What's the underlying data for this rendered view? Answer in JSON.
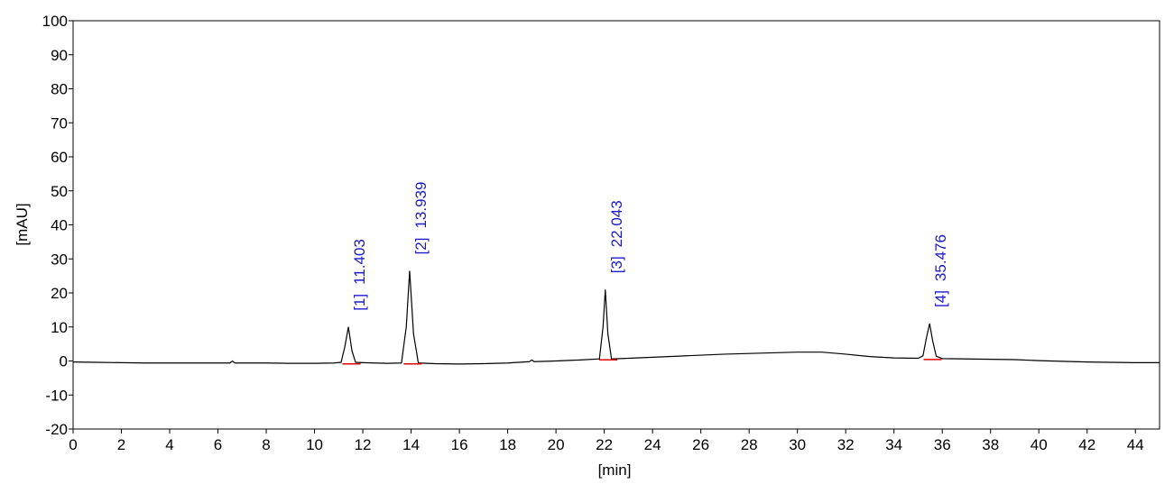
{
  "chart_data": {
    "type": "line",
    "x_label": "[min]",
    "y_label": "[mAU]",
    "xlim": [
      0,
      45
    ],
    "ylim": [
      -20,
      100
    ],
    "xticks": [
      0,
      2,
      4,
      6,
      8,
      10,
      12,
      14,
      16,
      18,
      20,
      22,
      24,
      26,
      28,
      30,
      32,
      34,
      36,
      38,
      40,
      42,
      44
    ],
    "yticks": [
      -20,
      -10,
      0,
      10,
      20,
      30,
      40,
      50,
      60,
      70,
      80,
      90,
      100
    ],
    "series": [
      {
        "color": "#000000",
        "x": [
          0,
          1,
          2,
          3,
          4,
          5,
          6,
          6.5,
          6.6,
          6.7,
          7,
          8,
          9,
          10,
          10.8,
          11.1,
          11.25,
          11.403,
          11.55,
          11.7,
          12,
          13,
          13.6,
          13.8,
          13.939,
          14.1,
          14.3,
          15,
          16,
          17,
          18,
          18.9,
          19,
          19.1,
          20,
          21,
          21.8,
          21.95,
          22.043,
          22.15,
          22.3,
          23,
          24,
          25,
          26,
          27,
          28,
          29,
          30,
          31,
          32,
          33,
          34,
          35,
          35.2,
          35.35,
          35.476,
          35.6,
          35.75,
          36,
          37,
          38,
          39,
          40,
          41,
          42,
          43,
          44,
          45
        ],
        "values": [
          -0.3,
          -0.4,
          -0.5,
          -0.6,
          -0.6,
          -0.6,
          -0.6,
          -0.6,
          0,
          -0.6,
          -0.6,
          -0.6,
          -0.7,
          -0.7,
          -0.6,
          -0.4,
          4,
          10,
          3,
          -0.4,
          -0.5,
          -0.7,
          -0.6,
          10,
          26.5,
          8,
          -0.6,
          -0.8,
          -0.9,
          -0.8,
          -0.6,
          -0.2,
          0.3,
          -0.2,
          0,
          0.3,
          0.6,
          10,
          21,
          8,
          0.6,
          0.8,
          1.1,
          1.4,
          1.7,
          2,
          2.2,
          2.4,
          2.6,
          2.6,
          2,
          1.3,
          0.9,
          0.8,
          1.5,
          7,
          11,
          6,
          1.4,
          0.7,
          0.6,
          0.5,
          0.4,
          0.1,
          -0.1,
          -0.3,
          -0.4,
          -0.5,
          -0.5
        ]
      }
    ],
    "peaks": [
      {
        "id": "[1]",
        "rt": 11.403
      },
      {
        "id": "[2]",
        "rt": 13.939
      },
      {
        "id": "[3]",
        "rt": 22.043
      },
      {
        "id": "[4]",
        "rt": 35.476
      }
    ],
    "peak_label_color": "#1a1acc",
    "marker_color": "#e00000"
  }
}
